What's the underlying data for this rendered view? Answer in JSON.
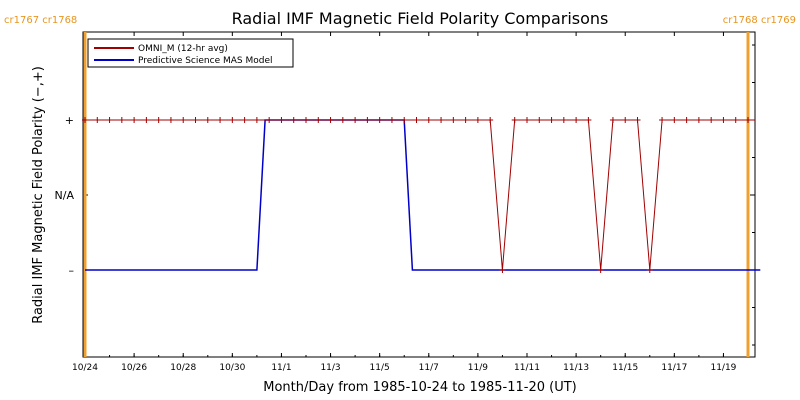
{
  "chart_data": {
    "type": "line",
    "title": "Radial IMF Magnetic Field Polarity Comparisons",
    "xlabel": "Month/Day from 1985-10-24 to 1985-11-20 (UT)",
    "ylabel": "Radial IMF Magnetic Field Polarity (−,+)",
    "x_range": [
      "1985-10-24",
      "1985-11-20"
    ],
    "x_tick_dates": [
      "1985-10-24",
      "1985-10-26",
      "1985-10-28",
      "1985-10-30",
      "1985-11-01",
      "1985-11-03",
      "1985-11-05",
      "1985-11-07",
      "1985-11-09",
      "1985-11-11",
      "1985-11-13",
      "1985-11-15",
      "1985-11-17",
      "1985-11-19"
    ],
    "x_tick_labels": [
      "10/24",
      "10/26",
      "10/28",
      "10/30",
      "11/1",
      "11/3",
      "11/5",
      "11/7",
      "11/9",
      "11/11",
      "11/13",
      "11/15",
      "11/17",
      "11/19"
    ],
    "y_categories": [
      "–",
      "N/A",
      "+"
    ],
    "y_values": [
      -1,
      0,
      1
    ],
    "y_range": [
      -2,
      2
    ],
    "grid": false,
    "legend_position": "top-left",
    "rotations": [
      {
        "date": "1985-10-24",
        "left_label": "cr1767",
        "right_label": "cr1768",
        "side": "left"
      },
      {
        "date": "1985-11-20",
        "left_label": "cr1768",
        "right_label": "cr1769",
        "side": "right"
      }
    ],
    "series": [
      {
        "name": "OMNI_M (12-hr avg)",
        "color": "#a00000",
        "marker": "plus",
        "points": [
          [
            "1985-10-24T00:00",
            1
          ],
          [
            "1985-10-24T12:00",
            1
          ],
          [
            "1985-10-25T00:00",
            1
          ],
          [
            "1985-10-25T12:00",
            1
          ],
          [
            "1985-10-26T00:00",
            1
          ],
          [
            "1985-10-26T12:00",
            1
          ],
          [
            "1985-10-27T00:00",
            1
          ],
          [
            "1985-10-27T12:00",
            1
          ],
          [
            "1985-10-28T00:00",
            1
          ],
          [
            "1985-10-28T12:00",
            1
          ],
          [
            "1985-10-29T00:00",
            1
          ],
          [
            "1985-10-29T12:00",
            1
          ],
          [
            "1985-10-30T00:00",
            1
          ],
          [
            "1985-10-30T12:00",
            1
          ],
          [
            "1985-10-31T00:00",
            1
          ],
          [
            "1985-10-31T12:00",
            1
          ],
          [
            "1985-11-01T00:00",
            1
          ],
          [
            "1985-11-01T12:00",
            1
          ],
          [
            "1985-11-02T00:00",
            1
          ],
          [
            "1985-11-02T12:00",
            1
          ],
          [
            "1985-11-03T00:00",
            1
          ],
          [
            "1985-11-03T12:00",
            1
          ],
          [
            "1985-11-04T00:00",
            1
          ],
          [
            "1985-11-04T12:00",
            1
          ],
          [
            "1985-11-05T00:00",
            1
          ],
          [
            "1985-11-05T12:00",
            1
          ],
          [
            "1985-11-06T00:00",
            1
          ],
          [
            "1985-11-06T12:00",
            1
          ],
          [
            "1985-11-07T00:00",
            1
          ],
          [
            "1985-11-07T12:00",
            1
          ],
          [
            "1985-11-08T00:00",
            1
          ],
          [
            "1985-11-08T12:00",
            1
          ],
          [
            "1985-11-09T00:00",
            1
          ],
          [
            "1985-11-09T12:00",
            1
          ],
          [
            "1985-11-10T00:00",
            -1
          ],
          [
            "1985-11-10T12:00",
            1
          ],
          [
            "1985-11-11T00:00",
            1
          ],
          [
            "1985-11-11T12:00",
            1
          ],
          [
            "1985-11-12T00:00",
            1
          ],
          [
            "1985-11-12T12:00",
            1
          ],
          [
            "1985-11-13T00:00",
            1
          ],
          [
            "1985-11-13T12:00",
            1
          ],
          [
            "1985-11-14T00:00",
            -1
          ],
          [
            "1985-11-14T12:00",
            1
          ],
          [
            "1985-11-15T00:00",
            1
          ],
          [
            "1985-11-15T12:00",
            1
          ],
          [
            "1985-11-16T00:00",
            -1
          ],
          [
            "1985-11-16T12:00",
            1
          ],
          [
            "1985-11-17T00:00",
            1
          ],
          [
            "1985-11-17T12:00",
            1
          ],
          [
            "1985-11-18T00:00",
            1
          ],
          [
            "1985-11-18T12:00",
            1
          ],
          [
            "1985-11-19T00:00",
            1
          ],
          [
            "1985-11-19T12:00",
            1
          ],
          [
            "1985-11-20T00:00",
            1
          ],
          [
            "1985-11-20T12:00",
            1
          ]
        ]
      },
      {
        "name": "Predictive Science MAS Model",
        "color": "#0000c8",
        "marker": "none",
        "points": [
          [
            "1985-10-24T00:00",
            -1
          ],
          [
            "1985-10-31T00:00",
            -1
          ],
          [
            "1985-10-31T08:00",
            1
          ],
          [
            "1985-11-06T00:00",
            1
          ],
          [
            "1985-11-06T08:00",
            -1
          ],
          [
            "1985-11-20T12:00",
            -1
          ]
        ]
      }
    ]
  }
}
